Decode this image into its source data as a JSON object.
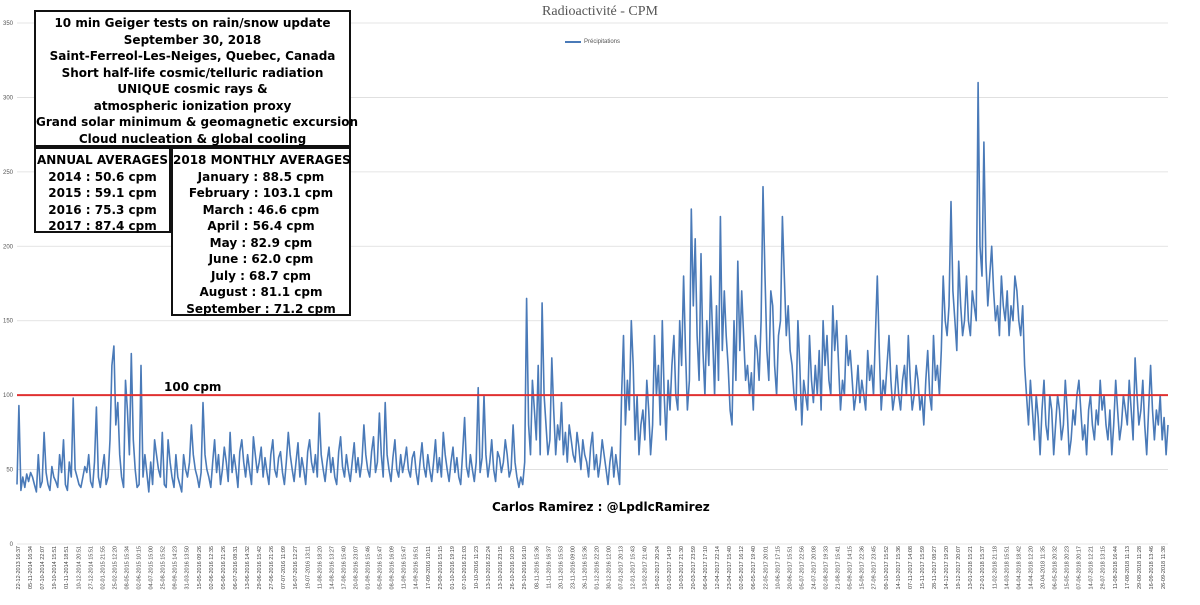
{
  "chart_data": {
    "type": "line",
    "title": "Radioactivité - CPM",
    "legend": {
      "position": "top-center",
      "entries": [
        "Précipitations"
      ]
    },
    "ylim": [
      0,
      350
    ],
    "yticks": [
      0,
      50,
      100,
      150,
      200,
      250,
      300,
      350
    ],
    "grid": true,
    "series": [
      {
        "name": "Précipitations",
        "color": "#4a7ab8",
        "values": [
          40,
          93,
          36,
          45,
          38,
          47,
          42,
          48,
          45,
          40,
          35,
          60,
          38,
          42,
          75,
          48,
          40,
          36,
          52,
          45,
          42,
          38,
          60,
          48,
          70,
          40,
          36,
          55,
          45,
          98,
          50,
          45,
          40,
          38,
          45,
          52,
          48,
          60,
          42,
          38,
          55,
          92,
          45,
          38,
          50,
          60,
          40,
          45,
          70,
          120,
          133,
          80,
          95,
          60,
          45,
          38,
          110,
          90,
          60,
          128,
          70,
          50,
          38,
          40,
          120,
          45,
          60,
          48,
          35,
          55,
          40,
          70,
          60,
          50,
          45,
          75,
          40,
          38,
          70,
          55,
          45,
          38,
          60,
          45,
          40,
          35,
          60,
          50,
          45,
          55,
          80,
          60,
          50,
          45,
          38,
          48,
          95,
          60,
          50,
          45,
          38,
          55,
          70,
          48,
          60,
          40,
          50,
          65,
          55,
          42,
          75,
          48,
          60,
          50,
          38,
          62,
          70,
          55,
          45,
          60,
          50,
          40,
          72,
          60,
          48,
          55,
          65,
          45,
          58,
          48,
          40,
          60,
          70,
          50,
          45,
          58,
          62,
          48,
          40,
          55,
          75,
          60,
          50,
          42,
          55,
          68,
          45,
          58,
          50,
          40,
          62,
          70,
          55,
          48,
          60,
          45,
          88,
          60,
          50,
          42,
          55,
          65,
          48,
          58,
          45,
          40,
          62,
          72,
          52,
          45,
          60,
          50,
          42,
          55,
          68,
          48,
          58,
          45,
          55,
          80,
          60,
          50,
          45,
          62,
          72,
          48,
          55,
          88,
          60,
          45,
          95,
          60,
          50,
          42,
          58,
          70,
          50,
          45,
          60,
          48,
          55,
          65,
          50,
          45,
          58,
          62,
          48,
          40,
          55,
          68,
          52,
          45,
          60,
          50,
          42,
          55,
          70,
          48,
          58,
          45,
          75,
          60,
          50,
          42,
          55,
          65,
          48,
          58,
          45,
          40,
          62,
          85,
          52,
          45,
          60,
          50,
          42,
          55,
          105,
          48,
          58,
          100,
          60,
          45,
          55,
          70,
          50,
          42,
          62,
          58,
          48,
          55,
          70,
          60,
          45,
          50,
          80,
          55,
          45,
          38,
          45,
          40,
          55,
          165,
          80,
          60,
          110,
          90,
          70,
          120,
          60,
          162,
          100,
          80,
          60,
          70,
          125,
          90,
          60,
          80,
          70,
          95,
          60,
          75,
          55,
          80,
          70,
          60,
          55,
          75,
          65,
          50,
          70,
          60,
          55,
          45,
          65,
          75,
          50,
          60,
          45,
          55,
          70,
          60,
          50,
          40,
          55,
          65,
          45,
          60,
          50,
          40,
          100,
          140,
          80,
          110,
          90,
          150,
          120,
          70,
          100,
          60,
          80,
          90,
          70,
          110,
          90,
          60,
          80,
          140,
          100,
          120,
          80,
          150,
          100,
          70,
          110,
          90,
          120,
          140,
          100,
          90,
          150,
          120,
          180,
          130,
          90,
          110,
          225,
          160,
          205,
          140,
          110,
          195,
          130,
          100,
          150,
          120,
          180,
          140,
          100,
          160,
          110,
          220,
          130,
          170,
          140,
          120,
          90,
          80,
          150,
          110,
          190,
          130,
          170,
          140,
          110,
          120,
          100,
          115,
          90,
          140,
          130,
          110,
          150,
          240,
          180,
          130,
          110,
          170,
          160,
          120,
          100,
          140,
          150,
          220,
          180,
          140,
          160,
          130,
          120,
          100,
          90,
          150,
          120,
          80,
          110,
          100,
          90,
          140,
          110,
          95,
          120,
          100,
          130,
          90,
          150,
          120,
          140,
          110,
          100,
          160,
          130,
          150,
          120,
          90,
          110,
          100,
          140,
          120,
          130,
          110,
          90,
          100,
          120,
          95,
          110,
          100,
          90,
          130,
          110,
          120,
          100,
          140,
          180,
          130,
          90,
          110,
          100,
          120,
          140,
          110,
          90,
          100,
          120,
          100,
          90,
          110,
          120,
          100,
          140,
          110,
          90,
          100,
          120,
          110,
          90,
          100,
          80,
          110,
          130,
          100,
          90,
          140,
          110,
          120,
          100,
          130,
          180,
          150,
          140,
          160,
          230,
          170,
          150,
          130,
          190,
          160,
          140,
          150,
          180,
          150,
          140,
          170,
          160,
          150,
          310,
          200,
          180,
          270,
          190,
          160,
          180,
          200,
          170,
          150,
          160,
          140,
          180,
          160,
          150,
          170,
          140,
          160,
          150,
          180,
          170,
          150,
          140,
          160,
          120,
          100,
          80,
          110,
          90,
          70,
          100,
          85,
          60,
          90,
          110,
          80,
          70,
          100,
          90,
          60,
          80,
          100,
          90,
          70,
          80,
          110,
          90,
          60,
          70,
          90,
          80,
          100,
          110,
          90,
          70,
          80,
          60,
          90,
          100,
          80,
          70,
          90,
          80,
          110,
          90,
          100,
          80,
          70,
          90,
          60,
          80,
          110,
          90,
          70,
          80,
          100,
          90,
          80,
          110,
          90,
          70,
          125,
          100,
          80,
          90,
          110,
          80,
          60,
          90,
          120,
          90,
          70,
          90,
          80,
          100,
          70,
          85,
          60,
          80
        ]
      }
    ],
    "reference_line": {
      "value": 100,
      "color": "#e03131",
      "label": "100 cpm"
    },
    "x_tick_labels": [
      "22-12-2013 16:37",
      "05-11-2014 16:34",
      "07-10-2014 22:07",
      "19-10-2014 15:51",
      "01-11-2014 18:51",
      "10-12-2014 20:51",
      "27-12-2014 15:51",
      "02-01-2015 21:55",
      "25-02-2015 12:20",
      "08-05-2015 15:34",
      "02-06-2015 10:15",
      "04-07-2015 15:00",
      "25-08-2015 15:52",
      "09-09-2015 14:23",
      "31-03-2016 13:50",
      "15-05-2016 09:26",
      "02-06-2016 12:35",
      "05-06-2016 21:26",
      "06-07-2016 08:31",
      "13-06-2016 14:32",
      "29-06-2016 15:42",
      "27-06-2016 21:26",
      "07-07-2016 11:09",
      "16-07-2016 12:27",
      "19-07-2016 13:11",
      "11-08-2016 18:20",
      "14-08-2016 13:27",
      "17-08-2016 15:40",
      "20-08-2016 23:07",
      "01-09-2016 15:46",
      "05-09-2016 15:47",
      "08-09-2016 16:09",
      "11-09-2016 15:47",
      "14-09-2016 16:51",
      "17-09-2016 10:11",
      "23-09-2016 15:15",
      "01-10-2016 19:19",
      "07-10-2016 21:03",
      "10-10-2016 11:23",
      "13-10-2016 22:24",
      "13-10-2016 23:15",
      "26-10-2016 10:20",
      "29-10-2016 16:10",
      "08-11-2016 15:36",
      "11-11-2016 16:37",
      "20-11-2016 15:53",
      "23-11-2016 09:00",
      "26-11-2016 15:36",
      "01-12-2016 22:20",
      "30-12-2016 12:00",
      "07-01-2017 20:13",
      "12-01-2017 15:43",
      "13-02-2017 21:40",
      "19-02-2017 20:24",
      "01-03-2017 14:19",
      "10-03-2017 21:30",
      "20-03-2017 23:59",
      "06-04-2017 17:10",
      "12-04-2017 22:14",
      "23-04-2017 15:40",
      "02-05-2017 16:12",
      "06-05-2017 19:40",
      "22-05-2017 20:01",
      "10-06-2017 17:15",
      "20-06-2017 15:51",
      "05-07-2017 22:56",
      "24-07-2017 20:08",
      "02-08-2017 19:33",
      "21-08-2017 15:41",
      "05-09-2017 14:15",
      "15-09-2017 22:36",
      "27-09-2017 23:45",
      "09-10-2017 15:52",
      "14-10-2017 15:36",
      "07-11-2017 14:08",
      "15-11-2017 15:59",
      "28-11-2017 08:27",
      "14-12-2017 19:20",
      "19-12-2017 20:07",
      "13-01-2018 15:21",
      "22-01-2018 15:37",
      "11-02-2018 21:18",
      "14-03-2018 15:51",
      "04-04-2018 18:42",
      "14-04-2018 12:20",
      "20-04-2018 11:35",
      "06-05-2018 20:32",
      "15-05-2018 20:23",
      "07-06-2018 20:17",
      "14-07-2018 12:21",
      "29-07-2018 13:15",
      "11-08-2018 16:44",
      "17-08-2018 11:13",
      "29-08-2018 11:28",
      "16-09-2018 13:46",
      "26-09-2018 11:38"
    ]
  },
  "info_box": {
    "lines": [
      "10 min Geiger tests on rain/snow update",
      "September 30, 2018",
      "Saint-Ferreol-Les-Neiges, Quebec, Canada",
      "Short half-life cosmic/telluric radiation",
      "UNIQUE cosmic rays &",
      "atmospheric ionization proxy",
      "Grand solar minimum & geomagnetic excursion",
      "Cloud nucleation & global cooling"
    ]
  },
  "annual": {
    "header": "ANNUAL AVERAGES",
    "items": [
      "2014 : 50.6 cpm",
      "2015 : 59.1 cpm",
      "2016 : 75.3 cpm",
      "2017 : 87.4 cpm"
    ]
  },
  "monthly": {
    "header": "2018 MONTHLY AVERAGES",
    "items": [
      "January : 88.5 cpm",
      "February : 103.1 cpm",
      "March : 46.6 cpm",
      "April : 56.4 cpm",
      "May : 82.9 cpm",
      "June : 62.0 cpm",
      "July : 68.7 cpm",
      "August : 81.1 cpm",
      "September : 71.2 cpm"
    ]
  },
  "credit": "Carlos Ramirez : @LpdlcRamirez"
}
